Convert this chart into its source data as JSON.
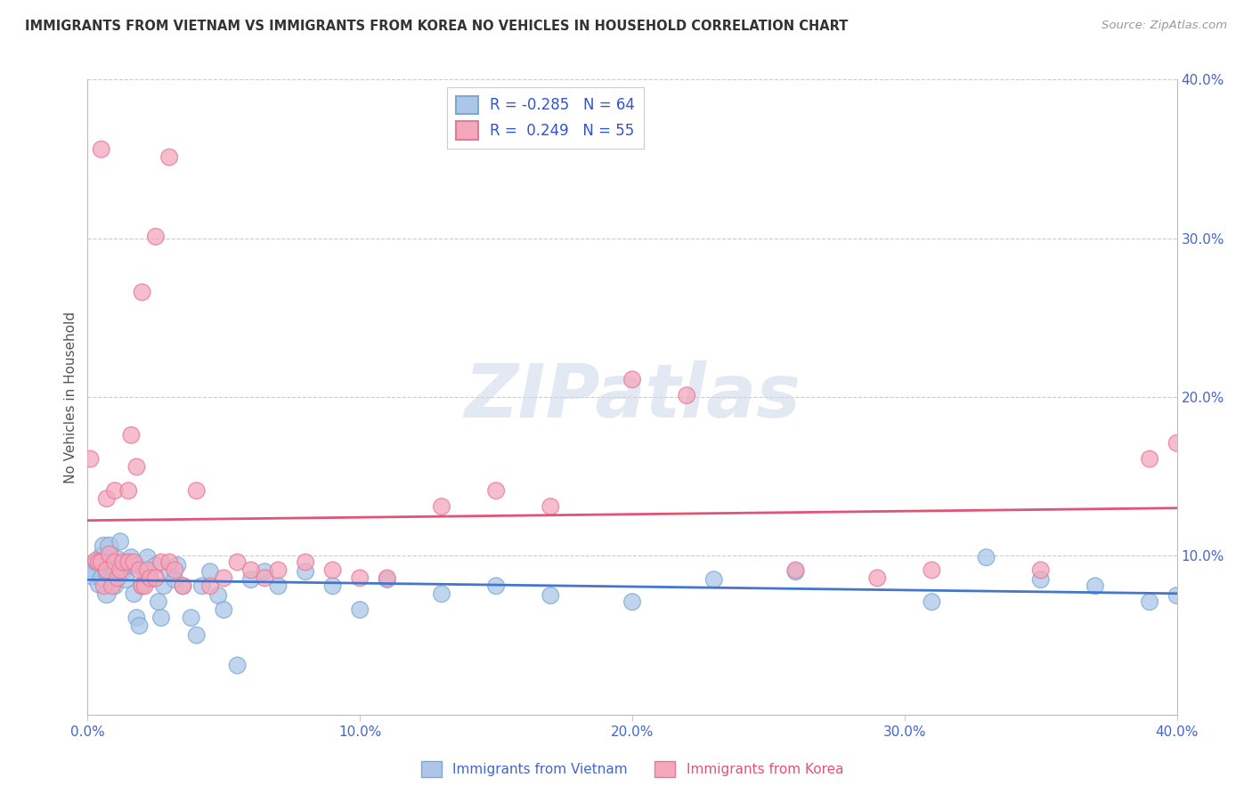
{
  "title": "IMMIGRANTS FROM VIETNAM VS IMMIGRANTS FROM KOREA NO VEHICLES IN HOUSEHOLD CORRELATION CHART",
  "source": "Source: ZipAtlas.com",
  "ylabel": "No Vehicles in Household",
  "xlim": [
    0.0,
    0.4
  ],
  "ylim": [
    0.0,
    0.4
  ],
  "legend_vietnam_r": "-0.285",
  "legend_vietnam_n": "64",
  "legend_korea_r": "0.249",
  "legend_korea_n": "55",
  "vietnam_fill": "#adc6e8",
  "vietnam_edge": "#7aaad4",
  "korea_fill": "#f4a8bc",
  "korea_edge": "#e87898",
  "vietnam_line_color": "#4477cc",
  "korea_line_color": "#e05575",
  "watermark": "ZIPatlas",
  "vietnam_x": [
    0.001,
    0.002,
    0.003,
    0.004,
    0.005,
    0.005,
    0.006,
    0.006,
    0.007,
    0.007,
    0.008,
    0.008,
    0.009,
    0.01,
    0.01,
    0.011,
    0.012,
    0.012,
    0.013,
    0.014,
    0.015,
    0.016,
    0.017,
    0.018,
    0.018,
    0.019,
    0.02,
    0.021,
    0.022,
    0.023,
    0.025,
    0.026,
    0.027,
    0.028,
    0.03,
    0.032,
    0.033,
    0.035,
    0.038,
    0.04,
    0.042,
    0.045,
    0.048,
    0.05,
    0.055,
    0.06,
    0.065,
    0.07,
    0.08,
    0.09,
    0.1,
    0.11,
    0.13,
    0.15,
    0.17,
    0.2,
    0.23,
    0.26,
    0.31,
    0.33,
    0.35,
    0.37,
    0.39,
    0.4
  ],
  "vietnam_y": [
    0.092,
    0.09,
    0.096,
    0.082,
    0.1,
    0.086,
    0.095,
    0.106,
    0.076,
    0.089,
    0.095,
    0.106,
    0.085,
    0.092,
    0.081,
    0.098,
    0.095,
    0.109,
    0.09,
    0.085,
    0.094,
    0.099,
    0.076,
    0.094,
    0.061,
    0.056,
    0.081,
    0.09,
    0.099,
    0.085,
    0.094,
    0.071,
    0.061,
    0.081,
    0.09,
    0.085,
    0.094,
    0.081,
    0.061,
    0.05,
    0.081,
    0.09,
    0.075,
    0.066,
    0.031,
    0.085,
    0.09,
    0.081,
    0.09,
    0.081,
    0.066,
    0.085,
    0.076,
    0.081,
    0.075,
    0.071,
    0.085,
    0.09,
    0.071,
    0.099,
    0.085,
    0.081,
    0.071,
    0.075
  ],
  "vietnam_sizes": [
    180,
    450,
    180,
    180,
    180,
    180,
    180,
    220,
    220,
    180,
    180,
    220,
    180,
    180,
    180,
    180,
    180,
    180,
    180,
    180,
    180,
    180,
    180,
    180,
    180,
    180,
    180,
    180,
    180,
    180,
    180,
    180,
    180,
    180,
    180,
    180,
    180,
    180,
    180,
    180,
    180,
    180,
    180,
    180,
    180,
    180,
    180,
    180,
    180,
    180,
    180,
    180,
    180,
    180,
    180,
    180,
    180,
    180,
    180,
    180,
    180,
    180,
    180,
    180
  ],
  "korea_x": [
    0.001,
    0.003,
    0.004,
    0.005,
    0.006,
    0.007,
    0.008,
    0.009,
    0.01,
    0.011,
    0.012,
    0.013,
    0.015,
    0.016,
    0.017,
    0.018,
    0.019,
    0.02,
    0.021,
    0.022,
    0.023,
    0.025,
    0.027,
    0.03,
    0.032,
    0.035,
    0.04,
    0.045,
    0.05,
    0.055,
    0.06,
    0.065,
    0.07,
    0.08,
    0.09,
    0.1,
    0.11,
    0.13,
    0.15,
    0.17,
    0.2,
    0.22,
    0.26,
    0.29,
    0.31,
    0.35,
    0.39,
    0.4,
    0.007,
    0.01,
    0.015,
    0.02,
    0.025,
    0.03,
    0.005
  ],
  "korea_y": [
    0.161,
    0.097,
    0.096,
    0.096,
    0.081,
    0.091,
    0.101,
    0.081,
    0.096,
    0.086,
    0.091,
    0.096,
    0.096,
    0.176,
    0.096,
    0.156,
    0.091,
    0.081,
    0.081,
    0.091,
    0.086,
    0.086,
    0.096,
    0.096,
    0.091,
    0.081,
    0.141,
    0.081,
    0.086,
    0.096,
    0.091,
    0.086,
    0.091,
    0.096,
    0.091,
    0.086,
    0.086,
    0.131,
    0.141,
    0.131,
    0.211,
    0.201,
    0.091,
    0.086,
    0.091,
    0.091,
    0.161,
    0.171,
    0.136,
    0.141,
    0.141,
    0.266,
    0.301,
    0.351,
    0.356
  ],
  "korea_sizes": [
    180,
    180,
    180,
    180,
    180,
    180,
    180,
    180,
    180,
    180,
    180,
    180,
    180,
    180,
    180,
    180,
    180,
    180,
    180,
    180,
    180,
    180,
    180,
    180,
    180,
    180,
    180,
    180,
    180,
    180,
    180,
    180,
    180,
    180,
    180,
    180,
    180,
    180,
    180,
    180,
    180,
    180,
    180,
    180,
    180,
    180,
    180,
    180,
    180,
    180,
    180,
    180,
    180,
    180,
    180
  ]
}
